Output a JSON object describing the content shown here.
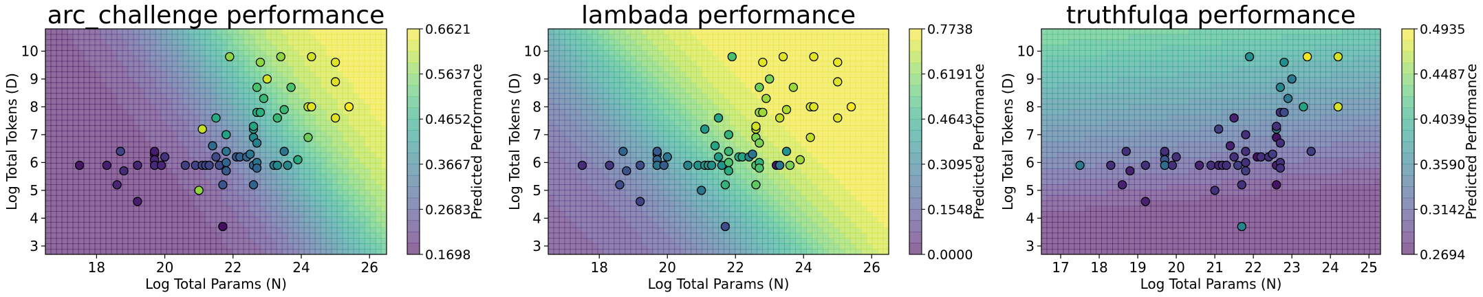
{
  "chart_data": [
    {
      "type": "scatter",
      "title": "arc_challenge performance",
      "xlabel": "Log Total Params (N)",
      "ylabel": "Log Total Tokens (D)",
      "colorbar_label": "Predicted Performance",
      "xlim": [
        16.5,
        26.5
      ],
      "ylim": [
        2.7,
        10.8
      ],
      "xticks": [
        "18",
        "20",
        "22",
        "24",
        "26"
      ],
      "xtick_values": [
        18,
        20,
        22,
        24,
        26
      ],
      "yticks": [
        "3",
        "4",
        "5",
        "6",
        "7",
        "8",
        "9",
        "10"
      ],
      "ytick_values": [
        3,
        4,
        5,
        6,
        7,
        8,
        9,
        10
      ],
      "colorbar_ticks": [
        "0.1698",
        "0.2683",
        "0.3667",
        "0.4652",
        "0.5637",
        "0.6621"
      ],
      "crange": [
        0.1698,
        0.6621
      ],
      "surface": {
        "shape": "hyperbolic",
        "base": 0.17,
        "scale": 0.495,
        "a": 0.62,
        "b": 0.38,
        "k": 2.6,
        "x0": 21.8,
        "y0": 7.6,
        "bias": -0.55
      },
      "points": [
        {
          "x": 17.5,
          "y": 5.9,
          "v": 0.2
        },
        {
          "x": 18.3,
          "y": 5.9,
          "v": 0.21
        },
        {
          "x": 18.6,
          "y": 5.2,
          "v": 0.22
        },
        {
          "x": 18.8,
          "y": 5.7,
          "v": 0.23
        },
        {
          "x": 18.7,
          "y": 6.4,
          "v": 0.27
        },
        {
          "x": 19.2,
          "y": 4.6,
          "v": 0.21
        },
        {
          "x": 19.2,
          "y": 5.9,
          "v": 0.22
        },
        {
          "x": 19.7,
          "y": 6.3,
          "v": 0.2
        },
        {
          "x": 19.7,
          "y": 6.4,
          "v": 0.21
        },
        {
          "x": 19.7,
          "y": 6.1,
          "v": 0.22
        },
        {
          "x": 19.7,
          "y": 5.9,
          "v": 0.23
        },
        {
          "x": 19.9,
          "y": 5.9,
          "v": 0.22
        },
        {
          "x": 20.0,
          "y": 6.2,
          "v": 0.24
        },
        {
          "x": 20.6,
          "y": 5.9,
          "v": 0.26
        },
        {
          "x": 20.9,
          "y": 5.9,
          "v": 0.27
        },
        {
          "x": 21.0,
          "y": 5.0,
          "v": 0.58
        },
        {
          "x": 21.1,
          "y": 5.9,
          "v": 0.27
        },
        {
          "x": 21.1,
          "y": 7.2,
          "v": 0.62
        },
        {
          "x": 21.2,
          "y": 5.9,
          "v": 0.28
        },
        {
          "x": 21.3,
          "y": 5.9,
          "v": 0.27
        },
        {
          "x": 21.4,
          "y": 6.6,
          "v": 0.34
        },
        {
          "x": 21.5,
          "y": 7.6,
          "v": 0.47
        },
        {
          "x": 21.5,
          "y": 6.2,
          "v": 0.28
        },
        {
          "x": 21.6,
          "y": 5.9,
          "v": 0.28
        },
        {
          "x": 21.7,
          "y": 5.2,
          "v": 0.3
        },
        {
          "x": 21.8,
          "y": 6.0,
          "v": 0.33
        },
        {
          "x": 21.8,
          "y": 6.4,
          "v": 0.36
        },
        {
          "x": 21.8,
          "y": 7.0,
          "v": 0.45
        },
        {
          "x": 21.8,
          "y": 5.7,
          "v": 0.31
        },
        {
          "x": 21.7,
          "y": 3.7,
          "v": 0.19
        },
        {
          "x": 21.9,
          "y": 9.8,
          "v": 0.58
        },
        {
          "x": 22.1,
          "y": 6.2,
          "v": 0.3
        },
        {
          "x": 22.2,
          "y": 6.2,
          "v": 0.32
        },
        {
          "x": 22.4,
          "y": 6.2,
          "v": 0.33
        },
        {
          "x": 22.5,
          "y": 6.3,
          "v": 0.36
        },
        {
          "x": 22.6,
          "y": 5.2,
          "v": 0.33
        },
        {
          "x": 22.6,
          "y": 5.9,
          "v": 0.34
        },
        {
          "x": 22.6,
          "y": 6.9,
          "v": 0.4
        },
        {
          "x": 22.6,
          "y": 7.2,
          "v": 0.44
        },
        {
          "x": 22.6,
          "y": 7.3,
          "v": 0.46
        },
        {
          "x": 22.7,
          "y": 6.0,
          "v": 0.36
        },
        {
          "x": 22.7,
          "y": 6.7,
          "v": 0.38
        },
        {
          "x": 22.7,
          "y": 7.8,
          "v": 0.47
        },
        {
          "x": 22.7,
          "y": 8.7,
          "v": 0.52
        },
        {
          "x": 22.7,
          "y": 5.8,
          "v": 0.33
        },
        {
          "x": 22.8,
          "y": 7.8,
          "v": 0.48
        },
        {
          "x": 22.8,
          "y": 9.6,
          "v": 0.58
        },
        {
          "x": 22.9,
          "y": 8.3,
          "v": 0.5
        },
        {
          "x": 23.0,
          "y": 9.0,
          "v": 0.63
        },
        {
          "x": 23.2,
          "y": 5.9,
          "v": 0.37
        },
        {
          "x": 23.3,
          "y": 7.6,
          "v": 0.5
        },
        {
          "x": 23.3,
          "y": 5.9,
          "v": 0.4
        },
        {
          "x": 23.4,
          "y": 9.8,
          "v": 0.58
        },
        {
          "x": 23.5,
          "y": 6.4,
          "v": 0.36
        },
        {
          "x": 23.5,
          "y": 7.9,
          "v": 0.5
        },
        {
          "x": 23.6,
          "y": 5.9,
          "v": 0.4
        },
        {
          "x": 23.7,
          "y": 8.7,
          "v": 0.52
        },
        {
          "x": 23.9,
          "y": 6.1,
          "v": 0.47
        },
        {
          "x": 24.2,
          "y": 6.9,
          "v": 0.55
        },
        {
          "x": 24.2,
          "y": 8.0,
          "v": 0.62
        },
        {
          "x": 24.3,
          "y": 8.0,
          "v": 0.64
        },
        {
          "x": 24.3,
          "y": 9.8,
          "v": 0.63
        },
        {
          "x": 25.0,
          "y": 7.6,
          "v": 0.64
        },
        {
          "x": 25.0,
          "y": 8.9,
          "v": 0.64
        },
        {
          "x": 25.0,
          "y": 9.6,
          "v": 0.64
        },
        {
          "x": 25.4,
          "y": 8.0,
          "v": 0.66
        }
      ]
    },
    {
      "type": "scatter",
      "title": "lambada performance",
      "xlabel": "Log Total Params (N)",
      "ylabel": "Log Total Tokens (D)",
      "colorbar_label": "Predicted Performance",
      "xlim": [
        16.5,
        26.5
      ],
      "ylim": [
        2.7,
        10.8
      ],
      "xticks": [
        "18",
        "20",
        "22",
        "24",
        "26"
      ],
      "xtick_values": [
        18,
        20,
        22,
        24,
        26
      ],
      "yticks": [
        "3",
        "4",
        "5",
        "6",
        "7",
        "8",
        "9",
        "10"
      ],
      "ytick_values": [
        3,
        4,
        5,
        6,
        7,
        8,
        9,
        10
      ],
      "colorbar_ticks": [
        "0.0000",
        "0.1548",
        "0.3095",
        "0.4643",
        "0.6191",
        "0.7738"
      ],
      "crange": [
        0.0,
        0.7738
      ],
      "surface": {
        "shape": "hyperbolic",
        "base": 0.05,
        "scale": 0.75,
        "a": 0.42,
        "b": 0.34,
        "k": 3.0,
        "x0": 20.5,
        "y0": 6.6,
        "bias": 0.1
      },
      "points": [
        {
          "x": 17.5,
          "y": 5.9,
          "v": 0.1
        },
        {
          "x": 18.3,
          "y": 5.9,
          "v": 0.12
        },
        {
          "x": 18.6,
          "y": 5.2,
          "v": 0.18
        },
        {
          "x": 18.8,
          "y": 5.7,
          "v": 0.2
        },
        {
          "x": 18.7,
          "y": 6.4,
          "v": 0.25
        },
        {
          "x": 19.2,
          "y": 4.6,
          "v": 0.15
        },
        {
          "x": 19.2,
          "y": 5.9,
          "v": 0.18
        },
        {
          "x": 19.7,
          "y": 6.3,
          "v": 0.2
        },
        {
          "x": 19.7,
          "y": 6.4,
          "v": 0.22
        },
        {
          "x": 19.7,
          "y": 6.1,
          "v": 0.25
        },
        {
          "x": 19.7,
          "y": 5.9,
          "v": 0.3
        },
        {
          "x": 19.9,
          "y": 5.9,
          "v": 0.22
        },
        {
          "x": 20.0,
          "y": 6.2,
          "v": 0.3
        },
        {
          "x": 20.6,
          "y": 5.9,
          "v": 0.35
        },
        {
          "x": 20.9,
          "y": 5.9,
          "v": 0.4
        },
        {
          "x": 21.0,
          "y": 5.0,
          "v": 0.3
        },
        {
          "x": 21.1,
          "y": 5.9,
          "v": 0.4
        },
        {
          "x": 21.1,
          "y": 7.2,
          "v": 0.42
        },
        {
          "x": 21.2,
          "y": 5.9,
          "v": 0.42
        },
        {
          "x": 21.3,
          "y": 5.9,
          "v": 0.38
        },
        {
          "x": 21.4,
          "y": 6.6,
          "v": 0.45
        },
        {
          "x": 21.5,
          "y": 7.6,
          "v": 0.45
        },
        {
          "x": 21.5,
          "y": 6.2,
          "v": 0.42
        },
        {
          "x": 21.6,
          "y": 5.9,
          "v": 0.4
        },
        {
          "x": 21.7,
          "y": 5.2,
          "v": 0.5
        },
        {
          "x": 21.8,
          "y": 6.0,
          "v": 0.55
        },
        {
          "x": 21.8,
          "y": 6.4,
          "v": 0.52
        },
        {
          "x": 21.8,
          "y": 7.0,
          "v": 0.5
        },
        {
          "x": 21.8,
          "y": 5.7,
          "v": 0.48
        },
        {
          "x": 21.7,
          "y": 3.7,
          "v": 0.18
        },
        {
          "x": 21.9,
          "y": 9.8,
          "v": 0.55
        },
        {
          "x": 22.1,
          "y": 6.2,
          "v": 0.48
        },
        {
          "x": 22.2,
          "y": 6.2,
          "v": 0.45
        },
        {
          "x": 22.4,
          "y": 6.2,
          "v": 0.35
        },
        {
          "x": 22.5,
          "y": 6.3,
          "v": 0.3
        },
        {
          "x": 22.6,
          "y": 5.2,
          "v": 0.58
        },
        {
          "x": 22.6,
          "y": 5.9,
          "v": 0.55
        },
        {
          "x": 22.6,
          "y": 6.9,
          "v": 0.62
        },
        {
          "x": 22.6,
          "y": 7.2,
          "v": 0.7
        },
        {
          "x": 22.6,
          "y": 7.3,
          "v": 0.72
        },
        {
          "x": 22.7,
          "y": 6.0,
          "v": 0.5
        },
        {
          "x": 22.7,
          "y": 6.7,
          "v": 0.62
        },
        {
          "x": 22.7,
          "y": 7.8,
          "v": 0.65
        },
        {
          "x": 22.7,
          "y": 8.7,
          "v": 0.6
        },
        {
          "x": 22.7,
          "y": 5.8,
          "v": 0.55
        },
        {
          "x": 22.8,
          "y": 7.8,
          "v": 0.66
        },
        {
          "x": 22.8,
          "y": 9.6,
          "v": 0.74
        },
        {
          "x": 22.9,
          "y": 8.3,
          "v": 0.66
        },
        {
          "x": 23.0,
          "y": 9.0,
          "v": 0.62
        },
        {
          "x": 23.2,
          "y": 5.9,
          "v": 0.05
        },
        {
          "x": 23.3,
          "y": 7.6,
          "v": 0.7
        },
        {
          "x": 23.3,
          "y": 5.9,
          "v": 0.3
        },
        {
          "x": 23.4,
          "y": 9.8,
          "v": 0.74
        },
        {
          "x": 23.5,
          "y": 6.4,
          "v": 0.4
        },
        {
          "x": 23.5,
          "y": 7.9,
          "v": 0.68
        },
        {
          "x": 23.6,
          "y": 5.9,
          "v": 0.62
        },
        {
          "x": 23.7,
          "y": 8.7,
          "v": 0.66
        },
        {
          "x": 23.9,
          "y": 6.1,
          "v": 0.66
        },
        {
          "x": 24.2,
          "y": 6.9,
          "v": 0.7
        },
        {
          "x": 24.2,
          "y": 8.0,
          "v": 0.72
        },
        {
          "x": 24.3,
          "y": 8.0,
          "v": 0.74
        },
        {
          "x": 24.3,
          "y": 9.8,
          "v": 0.74
        },
        {
          "x": 25.0,
          "y": 7.6,
          "v": 0.74
        },
        {
          "x": 25.0,
          "y": 8.9,
          "v": 0.74
        },
        {
          "x": 25.0,
          "y": 9.6,
          "v": 0.75
        },
        {
          "x": 25.4,
          "y": 8.0,
          "v": 0.77
        }
      ]
    },
    {
      "type": "scatter",
      "title": "truthfulqa performance",
      "xlabel": "Log Total Params (N)",
      "ylabel": "Log Total Tokens (D)",
      "colorbar_label": "Predicted Performance",
      "xlim": [
        16.5,
        25.3
      ],
      "ylim": [
        2.7,
        10.8
      ],
      "xticks": [
        "17",
        "18",
        "19",
        "20",
        "21",
        "22",
        "23",
        "24",
        "25"
      ],
      "xtick_values": [
        17,
        18,
        19,
        20,
        21,
        22,
        23,
        24,
        25
      ],
      "yticks": [
        "3",
        "4",
        "5",
        "6",
        "7",
        "8",
        "9",
        "10"
      ],
      "ytick_values": [
        3,
        4,
        5,
        6,
        7,
        8,
        9,
        10
      ],
      "colorbar_ticks": [
        "0.2694",
        "0.3142",
        "0.3590",
        "0.4039",
        "0.4487",
        "0.4935"
      ],
      "crange": [
        0.2694,
        0.4935
      ],
      "surface": {
        "shape": "tilted",
        "base": 0.2694,
        "scale": 0.235,
        "cy": 0.095,
        "cx": -0.012,
        "y0": 3.7,
        "x0": 16.5
      },
      "points": [
        {
          "x": 17.5,
          "y": 5.9,
          "v": 0.36
        },
        {
          "x": 18.3,
          "y": 5.9,
          "v": 0.3
        },
        {
          "x": 18.6,
          "y": 5.2,
          "v": 0.29
        },
        {
          "x": 18.8,
          "y": 5.7,
          "v": 0.29
        },
        {
          "x": 18.7,
          "y": 6.4,
          "v": 0.3
        },
        {
          "x": 19.2,
          "y": 4.6,
          "v": 0.29
        },
        {
          "x": 19.2,
          "y": 5.9,
          "v": 0.3
        },
        {
          "x": 19.7,
          "y": 6.3,
          "v": 0.34
        },
        {
          "x": 19.7,
          "y": 6.4,
          "v": 0.3
        },
        {
          "x": 19.7,
          "y": 6.1,
          "v": 0.33
        },
        {
          "x": 19.7,
          "y": 5.9,
          "v": 0.35
        },
        {
          "x": 19.9,
          "y": 5.9,
          "v": 0.3
        },
        {
          "x": 20.0,
          "y": 6.2,
          "v": 0.3
        },
        {
          "x": 20.6,
          "y": 5.9,
          "v": 0.29
        },
        {
          "x": 20.9,
          "y": 5.9,
          "v": 0.3
        },
        {
          "x": 21.0,
          "y": 5.0,
          "v": 0.3
        },
        {
          "x": 21.1,
          "y": 5.9,
          "v": 0.29
        },
        {
          "x": 21.1,
          "y": 7.2,
          "v": 0.31
        },
        {
          "x": 21.2,
          "y": 5.9,
          "v": 0.3
        },
        {
          "x": 21.3,
          "y": 5.9,
          "v": 0.3
        },
        {
          "x": 21.4,
          "y": 6.6,
          "v": 0.29
        },
        {
          "x": 21.5,
          "y": 7.6,
          "v": 0.29
        },
        {
          "x": 21.5,
          "y": 6.2,
          "v": 0.3
        },
        {
          "x": 21.6,
          "y": 5.9,
          "v": 0.31
        },
        {
          "x": 21.7,
          "y": 5.2,
          "v": 0.3
        },
        {
          "x": 21.8,
          "y": 6.0,
          "v": 0.3
        },
        {
          "x": 21.8,
          "y": 6.4,
          "v": 0.3
        },
        {
          "x": 21.8,
          "y": 7.0,
          "v": 0.3
        },
        {
          "x": 21.8,
          "y": 5.7,
          "v": 0.31
        },
        {
          "x": 21.7,
          "y": 3.7,
          "v": 0.37
        },
        {
          "x": 21.9,
          "y": 9.8,
          "v": 0.38
        },
        {
          "x": 22.1,
          "y": 6.2,
          "v": 0.28
        },
        {
          "x": 22.2,
          "y": 6.2,
          "v": 0.3
        },
        {
          "x": 22.4,
          "y": 6.2,
          "v": 0.3
        },
        {
          "x": 22.5,
          "y": 6.3,
          "v": 0.31
        },
        {
          "x": 22.6,
          "y": 5.2,
          "v": 0.28
        },
        {
          "x": 22.6,
          "y": 5.9,
          "v": 0.29
        },
        {
          "x": 22.6,
          "y": 6.9,
          "v": 0.28
        },
        {
          "x": 22.6,
          "y": 7.2,
          "v": 0.36
        },
        {
          "x": 22.6,
          "y": 7.3,
          "v": 0.3
        },
        {
          "x": 22.7,
          "y": 6.0,
          "v": 0.3
        },
        {
          "x": 22.7,
          "y": 6.7,
          "v": 0.3
        },
        {
          "x": 22.7,
          "y": 7.8,
          "v": 0.3
        },
        {
          "x": 22.7,
          "y": 8.7,
          "v": 0.37
        },
        {
          "x": 22.7,
          "y": 5.8,
          "v": 0.3
        },
        {
          "x": 22.8,
          "y": 7.8,
          "v": 0.32
        },
        {
          "x": 22.8,
          "y": 9.6,
          "v": 0.38
        },
        {
          "x": 22.9,
          "y": 8.3,
          "v": 0.36
        },
        {
          "x": 23.0,
          "y": 9.0,
          "v": 0.36
        },
        {
          "x": 23.3,
          "y": 8.0,
          "v": 0.4
        },
        {
          "x": 23.4,
          "y": 9.8,
          "v": 0.49
        },
        {
          "x": 23.5,
          "y": 6.4,
          "v": 0.31
        },
        {
          "x": 24.2,
          "y": 8.0,
          "v": 0.48
        },
        {
          "x": 24.2,
          "y": 9.8,
          "v": 0.48
        }
      ]
    }
  ]
}
